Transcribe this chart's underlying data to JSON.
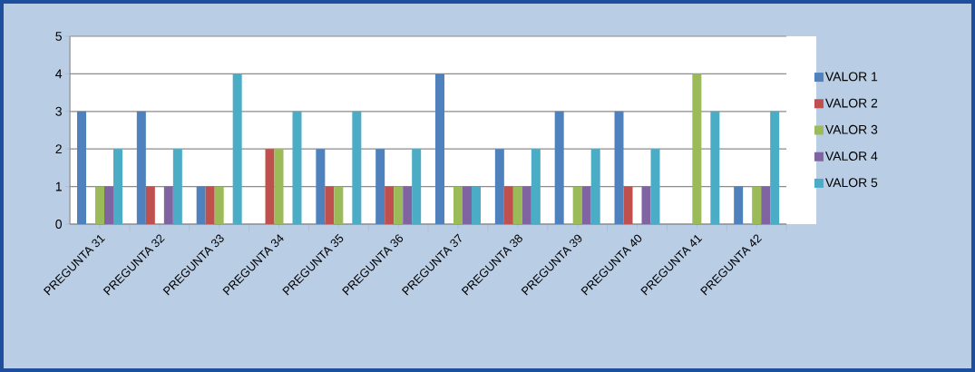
{
  "chart_data": {
    "type": "bar",
    "categories": [
      "PREGUNTA 31",
      "PREGUNTA 32",
      "PREGUNTA 33",
      "PREGUNTA 34",
      "PREGUNTA 35",
      "PREGUNTA 36",
      "PREGUNTA 37",
      "PREGUNTA 38",
      "PREGUNTA 39",
      "PREGUNTA 40",
      "PREGUNTA 41",
      "PREGUNTA 42"
    ],
    "series": [
      {
        "name": "VALOR 1",
        "color": "#4f81bd",
        "values": [
          3,
          3,
          1,
          0,
          2,
          2,
          4,
          2,
          3,
          3,
          0,
          1
        ]
      },
      {
        "name": "VALOR 2",
        "color": "#c0504d",
        "values": [
          0,
          1,
          1,
          2,
          1,
          1,
          0,
          1,
          0,
          1,
          0,
          0
        ]
      },
      {
        "name": "VALOR 3",
        "color": "#9bbb59",
        "values": [
          1,
          0,
          1,
          2,
          1,
          1,
          1,
          1,
          1,
          0,
          4,
          1
        ]
      },
      {
        "name": "VALOR 4",
        "color": "#8064a2",
        "values": [
          1,
          1,
          0,
          0,
          0,
          1,
          1,
          1,
          1,
          1,
          0,
          1
        ]
      },
      {
        "name": "VALOR 5",
        "color": "#4bacc6",
        "values": [
          2,
          2,
          4,
          3,
          3,
          2,
          1,
          2,
          2,
          2,
          3,
          3
        ]
      }
    ],
    "ylim": [
      0,
      5
    ],
    "yticks": [
      0,
      1,
      2,
      3,
      4,
      5
    ],
    "grid": "y",
    "legend": "right"
  }
}
